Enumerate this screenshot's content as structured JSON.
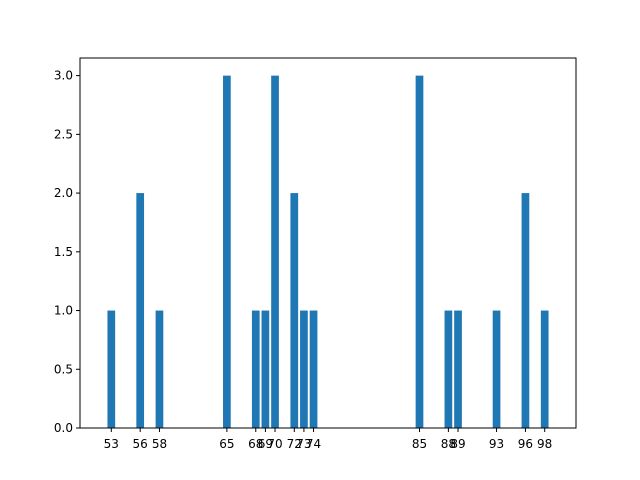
{
  "chart_data": {
    "type": "bar",
    "x": [
      53,
      56,
      58,
      65,
      68,
      69,
      70,
      72,
      73,
      74,
      85,
      88,
      89,
      93,
      96,
      98
    ],
    "values": [
      1,
      2,
      1,
      3,
      1,
      1,
      3,
      2,
      1,
      1,
      3,
      1,
      1,
      1,
      2,
      1
    ],
    "xticks": [
      "53",
      "56",
      "58",
      "65",
      "68",
      "69",
      "70",
      "72",
      "73",
      "74",
      "85",
      "88",
      "89",
      "93",
      "96",
      "98"
    ],
    "yticks": [
      "0.0",
      "0.5",
      "1.0",
      "1.5",
      "2.0",
      "2.5",
      "3.0"
    ],
    "xlim": [
      49.75,
      101.25
    ],
    "ylim": [
      0,
      3.15
    ],
    "bar_width": 0.8,
    "color": "#1f77b4",
    "title": "",
    "xlabel": "",
    "ylabel": "",
    "grid": false
  }
}
